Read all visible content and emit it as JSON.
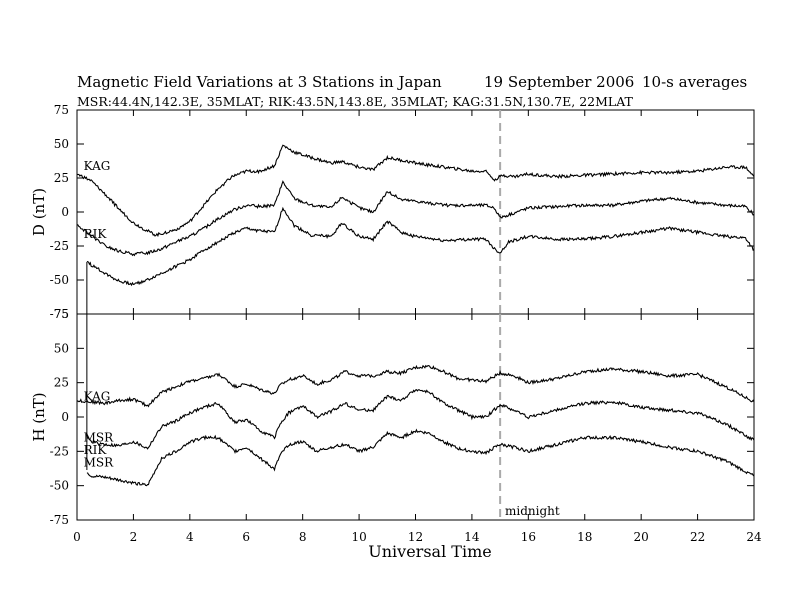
{
  "title": "Magnetic Field Variations at 3 Stations in Japan",
  "date": "19 September 2006",
  "averaging": "10-s averages",
  "stations_line": "MSR:44.4N,142.3E, 35MLAT;  RIK:43.5N,143.8E, 35MLAT;  KAG:31.5N,130.7E, 22MLAT",
  "xlabel": "Universal Time",
  "midnight_label": "midnight",
  "colors": {
    "axes": "#000000",
    "series": "#000000",
    "midnight_line": "#aaaaaa"
  },
  "chart_data": [
    {
      "type": "line",
      "panel": "top",
      "ylabel": "D (nT)",
      "xlim": [
        0,
        24
      ],
      "ylim": [
        -75,
        75
      ],
      "x_ticks": [
        0,
        2,
        4,
        6,
        8,
        10,
        12,
        14,
        16,
        18,
        20,
        22,
        24
      ],
      "y_ticks": [
        -75,
        -50,
        -25,
        0,
        25,
        50,
        75
      ],
      "midnight_ut": 15,
      "series": [
        {
          "name": "KAG",
          "x": [
            0,
            0.5,
            1,
            1.5,
            2,
            2.5,
            2.8,
            3.5,
            4,
            4.5,
            5,
            5.5,
            6,
            6.5,
            7,
            7.3,
            7.7,
            8.3,
            9,
            9.4,
            10,
            10.5,
            11,
            11.5,
            12,
            13,
            14,
            14.5,
            14.8,
            15.1,
            15.5,
            16,
            17,
            18,
            19,
            20,
            21,
            22,
            23,
            23.7,
            24
          ],
          "y": [
            28,
            23,
            13,
            2,
            -8,
            -14,
            -17,
            -13,
            -7,
            5,
            17,
            26,
            30,
            30,
            34,
            49,
            44,
            40,
            36,
            37,
            33,
            31,
            40,
            38,
            36,
            33,
            30,
            30,
            24,
            27,
            26,
            28,
            26,
            27,
            28,
            29,
            29,
            30,
            33,
            33,
            26
          ]
        },
        {
          "name": "RIK",
          "x": [
            0,
            0.5,
            1,
            1.5,
            2,
            2.5,
            3,
            3.5,
            4,
            4.5,
            5,
            5.5,
            6,
            6.5,
            7,
            7.3,
            7.7,
            8.3,
            9,
            9.4,
            10,
            10.5,
            11,
            11.5,
            12,
            13,
            14,
            14.5,
            14.8,
            15,
            15.3,
            16,
            17,
            18,
            19,
            20,
            21,
            22,
            23,
            23.7,
            24
          ],
          "y": [
            -10,
            -17,
            -25,
            -29,
            -31,
            -30,
            -27,
            -22,
            -18,
            -12,
            -5,
            1,
            5,
            4,
            5,
            22,
            10,
            5,
            3,
            11,
            3,
            0,
            15,
            9,
            8,
            5,
            5,
            5,
            3,
            -4,
            -2,
            3,
            4,
            5,
            5,
            8,
            10,
            7,
            5,
            4,
            -2
          ]
        },
        {
          "name": "MSR",
          "x": [
            0.35,
            0.5,
            1,
            1.5,
            2,
            2.5,
            3,
            3.5,
            4,
            4.5,
            5,
            5.5,
            6,
            6.5,
            7,
            7.3,
            7.7,
            8.3,
            9,
            9.4,
            10,
            10.5,
            11,
            11.5,
            12,
            13,
            14,
            14.5,
            14.8,
            15,
            15.3,
            16,
            17,
            18,
            19,
            20,
            21,
            22,
            23,
            23.7,
            24
          ],
          "y": [
            -36,
            -39,
            -45,
            -51,
            -53,
            -50,
            -45,
            -40,
            -35,
            -28,
            -22,
            -16,
            -12,
            -14,
            -15,
            3,
            -10,
            -17,
            -18,
            -8,
            -18,
            -20,
            -7,
            -15,
            -18,
            -21,
            -20,
            -20,
            -27,
            -30,
            -22,
            -18,
            -20,
            -20,
            -18,
            -15,
            -12,
            -15,
            -18,
            -19,
            -28
          ]
        }
      ],
      "series_labels": [
        {
          "name": "KAG",
          "x": 0.2,
          "y": 34
        },
        {
          "name": "RIK",
          "x": 0.2,
          "y": -16
        }
      ]
    },
    {
      "type": "line",
      "panel": "bottom",
      "ylabel": "H (nT)",
      "xlim": [
        0,
        24
      ],
      "ylim": [
        -75,
        75
      ],
      "x_ticks": [
        0,
        2,
        4,
        6,
        8,
        10,
        12,
        14,
        16,
        18,
        20,
        22,
        24
      ],
      "y_ticks": [
        -75,
        -50,
        -25,
        0,
        25,
        50,
        75
      ],
      "midnight_ut": 15,
      "series": [
        {
          "name": "KAG",
          "x": [
            0,
            0.5,
            1,
            1.5,
            2,
            2.5,
            3,
            3.5,
            4,
            4.5,
            5,
            5.3,
            5.6,
            6,
            6.5,
            7,
            7.2,
            7.5,
            8,
            8.5,
            9,
            9.5,
            10,
            10.5,
            11,
            11.5,
            12,
            12.5,
            13,
            13.5,
            14,
            14.5,
            15,
            15.5,
            16,
            17,
            18,
            19,
            20,
            21,
            22,
            23,
            24
          ],
          "y": [
            12,
            11,
            10,
            12,
            13,
            8,
            18,
            22,
            26,
            28,
            31,
            27,
            22,
            24,
            20,
            17,
            23,
            27,
            30,
            24,
            27,
            33,
            30,
            30,
            33,
            32,
            36,
            37,
            33,
            28,
            27,
            26,
            32,
            30,
            25,
            28,
            33,
            35,
            33,
            30,
            31,
            22,
            11
          ]
        },
        {
          "name": "RIK",
          "x": [
            0.3,
            0.5,
            1,
            1.5,
            2,
            2.5,
            3,
            3.5,
            4,
            4.5,
            5,
            5.3,
            5.6,
            6,
            6.5,
            7,
            7.2,
            7.5,
            8,
            8.5,
            9,
            9.5,
            10,
            10.5,
            11,
            11.5,
            12,
            12.5,
            13,
            13.5,
            14,
            14.5,
            15,
            15.5,
            16,
            17,
            18,
            19,
            20,
            21,
            22,
            23,
            24
          ],
          "y": [
            -13,
            -18,
            -20,
            -21,
            -18,
            -23,
            -7,
            -3,
            3,
            7,
            10,
            3,
            -4,
            -2,
            -10,
            -15,
            -5,
            3,
            8,
            0,
            4,
            10,
            5,
            5,
            15,
            12,
            20,
            18,
            10,
            5,
            0,
            0,
            9,
            5,
            0,
            5,
            10,
            11,
            7,
            5,
            3,
            -5,
            -17
          ]
        },
        {
          "name": "MSR",
          "x": [
            0.35,
            0.5,
            1,
            1.5,
            2,
            2.5,
            3,
            3.5,
            4,
            4.5,
            5,
            5.3,
            5.6,
            6,
            6.5,
            7,
            7.2,
            7.5,
            8,
            8.5,
            9,
            9.5,
            10,
            10.5,
            11,
            11.5,
            12,
            12.5,
            13,
            13.5,
            14,
            14.5,
            15,
            15.5,
            16,
            17,
            18,
            19,
            20,
            21,
            22,
            23,
            24
          ],
          "y": [
            -40,
            -43,
            -44,
            -46,
            -48,
            -50,
            -30,
            -25,
            -18,
            -15,
            -15,
            -20,
            -25,
            -22,
            -30,
            -38,
            -28,
            -20,
            -18,
            -25,
            -22,
            -20,
            -25,
            -22,
            -12,
            -15,
            -10,
            -12,
            -18,
            -23,
            -25,
            -26,
            -20,
            -22,
            -25,
            -20,
            -15,
            -15,
            -18,
            -22,
            -25,
            -32,
            -43
          ]
        }
      ],
      "series_labels": [
        {
          "name": "KAG",
          "x": 0.2,
          "y": 15
        },
        {
          "name": "MSR",
          "x": 0.2,
          "y": -15
        },
        {
          "name": "RIK",
          "x": 0.2,
          "y": -24
        },
        {
          "name": "MSR",
          "x": 0.2,
          "y": -33
        }
      ]
    }
  ]
}
